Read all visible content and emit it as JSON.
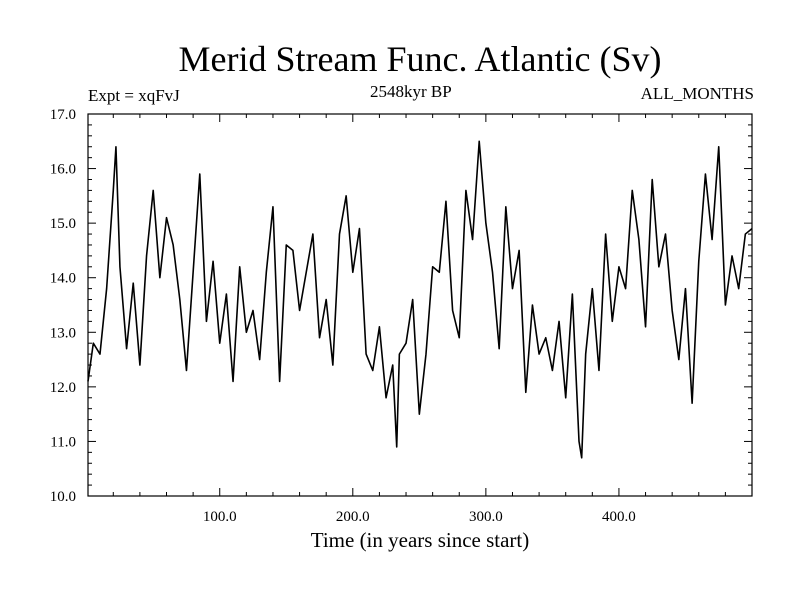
{
  "chart_data": {
    "type": "line",
    "title": "Merid Stream Func. Atlantic (Sv)",
    "experiment_label": "Expt = xqFvJ",
    "era_label": "2548kyr BP",
    "season_label": "ALL_MONTHS",
    "xlabel": "Time (in years since start)",
    "ylabel": "",
    "xlim": [
      1,
      500
    ],
    "ylim": [
      10.0,
      17.0
    ],
    "xticks": [
      100,
      200,
      300,
      400
    ],
    "xtick_labels": [
      "100.0",
      "200.0",
      "300.0",
      "400.0"
    ],
    "yticks": [
      10,
      11,
      12,
      13,
      14,
      15,
      16,
      17
    ],
    "ytick_labels": [
      "10.0",
      "11.0",
      "12.0",
      "13.0",
      "14.0",
      "15.0",
      "16.0",
      "17.0"
    ],
    "series": [
      {
        "name": "Merid Stream Func. Atlantic",
        "x": [
          1,
          5,
          10,
          15,
          20,
          22,
          25,
          30,
          35,
          40,
          45,
          50,
          55,
          60,
          65,
          70,
          75,
          80,
          85,
          90,
          95,
          100,
          105,
          110,
          115,
          120,
          125,
          130,
          135,
          140,
          145,
          150,
          155,
          160,
          165,
          170,
          175,
          180,
          185,
          190,
          195,
          200,
          205,
          210,
          215,
          220,
          225,
          230,
          233,
          235,
          240,
          245,
          250,
          255,
          260,
          265,
          270,
          275,
          280,
          285,
          290,
          295,
          300,
          305,
          310,
          315,
          320,
          325,
          330,
          335,
          340,
          345,
          350,
          355,
          360,
          365,
          370,
          372,
          375,
          380,
          385,
          390,
          395,
          400,
          405,
          410,
          415,
          420,
          425,
          430,
          435,
          440,
          445,
          450,
          455,
          460,
          465,
          470,
          475,
          480,
          485,
          490,
          495,
          500
        ],
        "y": [
          12.1,
          12.8,
          12.6,
          13.8,
          15.6,
          16.4,
          14.2,
          12.7,
          13.9,
          12.4,
          14.4,
          15.6,
          14.0,
          15.1,
          14.6,
          13.6,
          12.3,
          14.1,
          15.9,
          13.2,
          14.3,
          12.8,
          13.7,
          12.1,
          14.2,
          13.0,
          13.4,
          12.5,
          14.1,
          15.3,
          12.1,
          14.6,
          14.5,
          13.4,
          14.1,
          14.8,
          12.9,
          13.6,
          12.4,
          14.8,
          15.5,
          14.1,
          14.9,
          12.6,
          12.3,
          13.1,
          11.8,
          12.4,
          10.9,
          12.6,
          12.8,
          13.6,
          11.5,
          12.6,
          14.2,
          14.1,
          15.4,
          13.4,
          12.9,
          15.6,
          14.7,
          16.5,
          15.0,
          14.1,
          12.7,
          15.3,
          13.8,
          14.5,
          11.9,
          13.5,
          12.6,
          12.9,
          12.3,
          13.2,
          11.8,
          13.7,
          11.0,
          10.7,
          12.6,
          13.8,
          12.3,
          14.8,
          13.2,
          14.2,
          13.8,
          15.6,
          14.7,
          13.1,
          15.8,
          14.2,
          14.8,
          13.4,
          12.5,
          13.8,
          11.7,
          14.3,
          15.9,
          14.7,
          16.4,
          13.5,
          14.4,
          13.8,
          14.8,
          14.9
        ]
      }
    ]
  }
}
